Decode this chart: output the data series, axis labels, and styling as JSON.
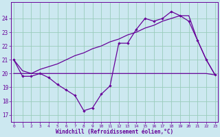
{
  "xlabel": "Windchill (Refroidissement éolien,°C)",
  "hours": [
    0,
    1,
    2,
    3,
    4,
    5,
    6,
    7,
    8,
    9,
    10,
    11,
    12,
    13,
    14,
    15,
    16,
    17,
    18,
    19,
    20,
    21,
    22,
    23
  ],
  "windchill": [
    21.0,
    19.8,
    19.8,
    20.0,
    19.7,
    19.2,
    18.8,
    18.4,
    17.3,
    17.5,
    18.5,
    19.1,
    22.2,
    22.2,
    23.2,
    24.0,
    23.8,
    24.0,
    24.5,
    24.2,
    23.8,
    22.4,
    21.0,
    19.9
  ],
  "temp_line": [
    21.0,
    20.2,
    20.0,
    20.3,
    20.5,
    20.7,
    21.0,
    21.3,
    21.5,
    21.8,
    22.0,
    22.3,
    22.5,
    22.8,
    23.0,
    23.3,
    23.5,
    23.8,
    24.0,
    24.2,
    24.2,
    22.4,
    21.0,
    19.9
  ],
  "flat_line": [
    20.0,
    20.0,
    20.0,
    20.0,
    20.0,
    20.0,
    20.0,
    20.0,
    20.0,
    20.0,
    20.0,
    20.0,
    20.0,
    20.0,
    20.0,
    20.0,
    20.0,
    20.0,
    20.0,
    20.0,
    20.0,
    20.0,
    20.0,
    19.9
  ],
  "line_color": "#660099",
  "bg_color": "#cce8f0",
  "grid_color": "#99ccbb",
  "ylim": [
    16.5,
    25.2
  ],
  "yticks": [
    17,
    18,
    19,
    20,
    21,
    22,
    23,
    24
  ],
  "xlim": [
    -0.3,
    23.3
  ]
}
